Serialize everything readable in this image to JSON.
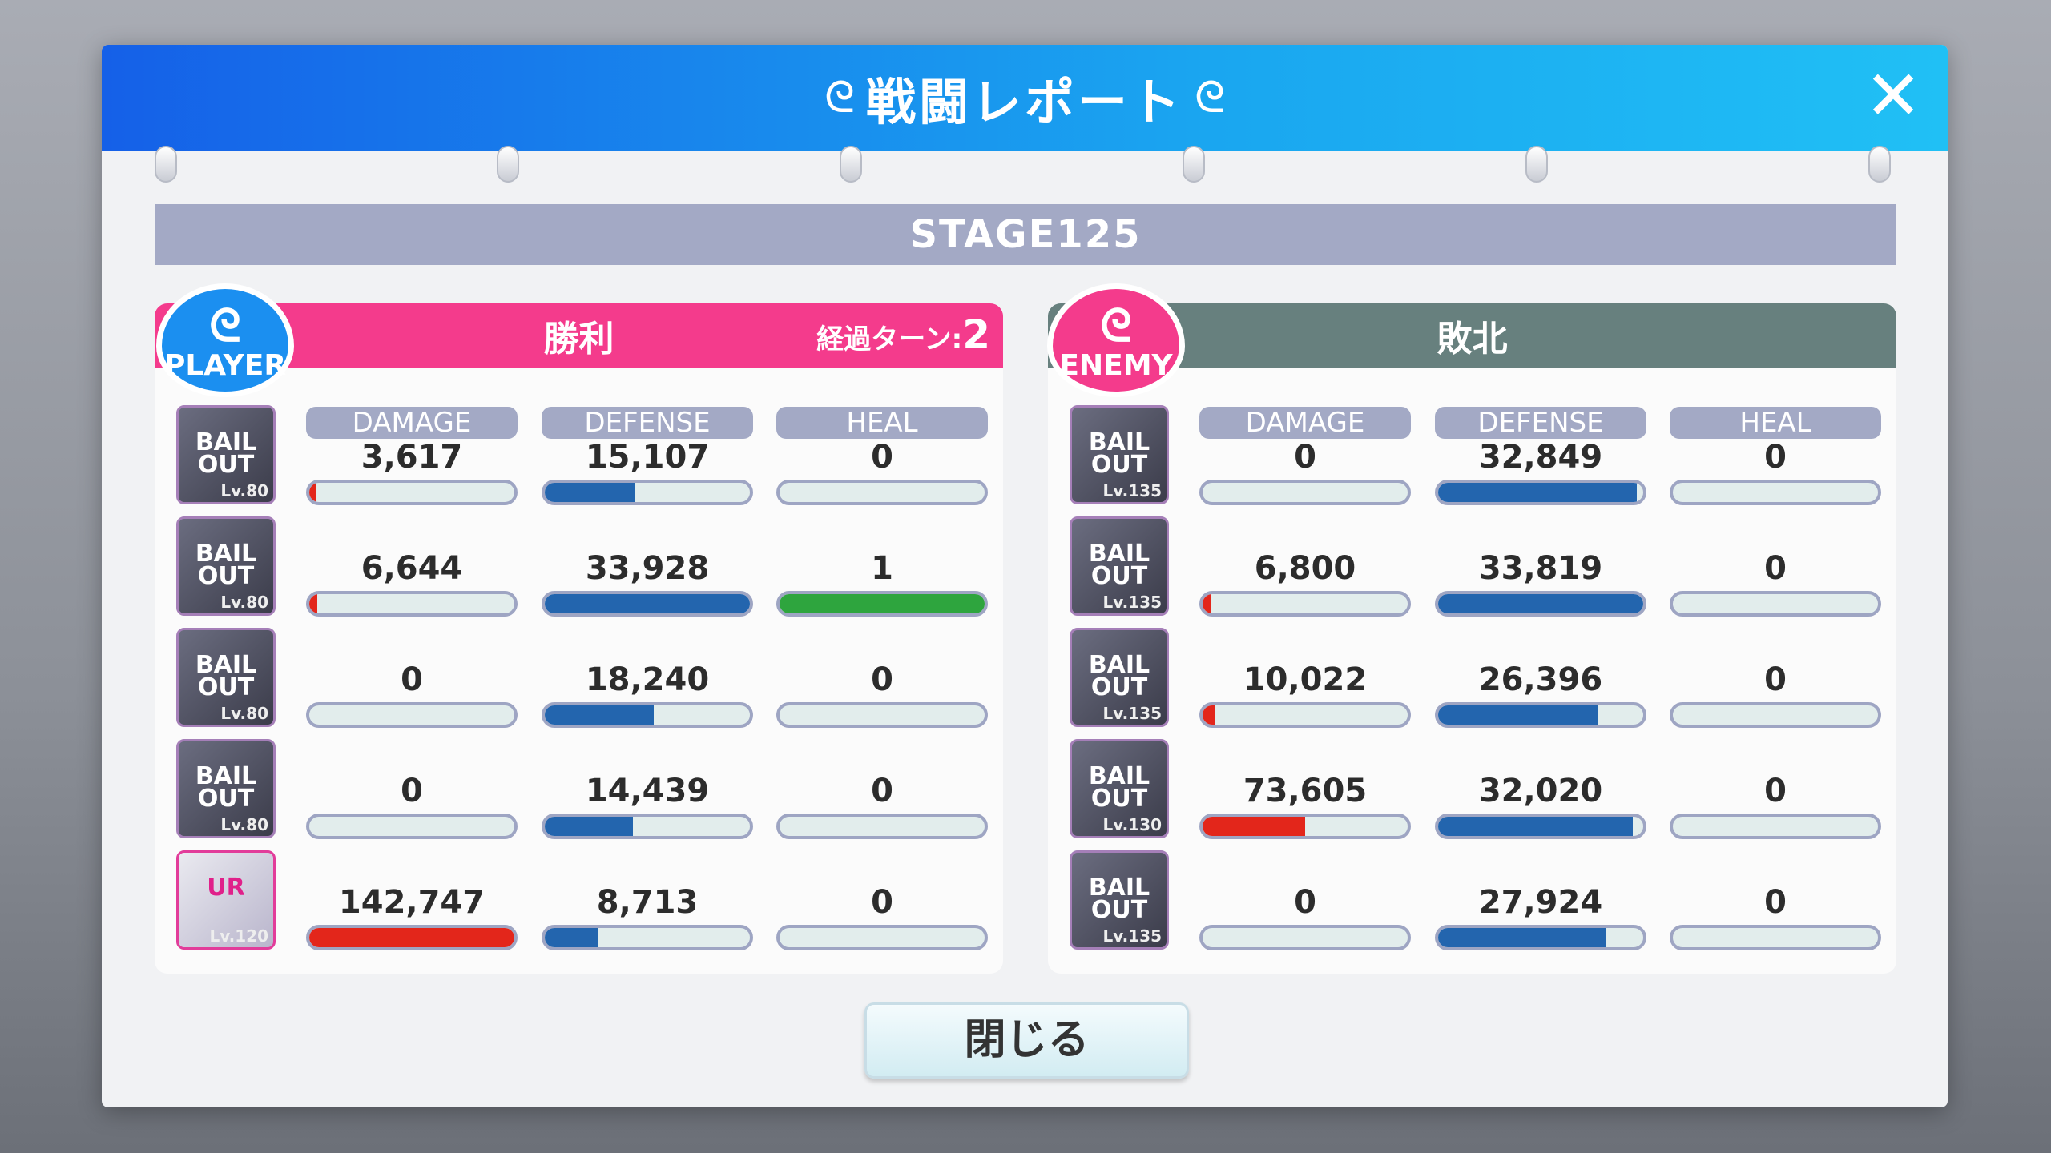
{
  "title": "戦闘レポート",
  "close_icon": "close-x-icon",
  "stage": "STAGE125",
  "close_button": "閉じる",
  "colors": {
    "header_blue": "#1a8cf0",
    "win": "#f43b8c",
    "lose": "#67807e",
    "damage": "#e3261b",
    "defense": "#2365ae",
    "heal": "#2ea53e"
  },
  "columns": [
    "DAMAGE",
    "DEFENSE",
    "HEAL"
  ],
  "player": {
    "badge": "PLAYER",
    "result": "勝利",
    "turns_label": "経過ターン:",
    "turns": "2",
    "rows": [
      {
        "portrait": "BAIL OUT",
        "level": "Lv.80",
        "damage": "3,617",
        "defense": "15,107",
        "heal": "0",
        "fill": [
          0.03,
          0.44,
          0
        ]
      },
      {
        "portrait": "BAIL OUT",
        "level": "Lv.80",
        "damage": "6,644",
        "defense": "33,928",
        "heal": "1",
        "fill": [
          0.04,
          1.0,
          1.0
        ]
      },
      {
        "portrait": "BAIL OUT",
        "level": "Lv.80",
        "damage": "0",
        "defense": "18,240",
        "heal": "0",
        "fill": [
          0,
          0.53,
          0
        ]
      },
      {
        "portrait": "BAIL OUT",
        "level": "Lv.80",
        "damage": "0",
        "defense": "14,439",
        "heal": "0",
        "fill": [
          0,
          0.43,
          0
        ]
      },
      {
        "portrait": "UR",
        "level": "Lv.120",
        "damage": "142,747",
        "defense": "8,713",
        "heal": "0",
        "fill": [
          1.0,
          0.26,
          0
        ]
      }
    ]
  },
  "enemy": {
    "badge": "ENEMY",
    "result": "敗北",
    "rows": [
      {
        "portrait": "BAIL OUT",
        "level": "Lv.135",
        "damage": "0",
        "defense": "32,849",
        "heal": "0",
        "fill": [
          0,
          0.97,
          0
        ]
      },
      {
        "portrait": "BAIL OUT",
        "level": "Lv.135",
        "damage": "6,800",
        "defense": "33,819",
        "heal": "0",
        "fill": [
          0.04,
          1.0,
          0
        ]
      },
      {
        "portrait": "BAIL OUT",
        "level": "Lv.135",
        "damage": "10,022",
        "defense": "26,396",
        "heal": "0",
        "fill": [
          0.06,
          0.78,
          0
        ]
      },
      {
        "portrait": "BAIL OUT",
        "level": "Lv.130",
        "damage": "73,605",
        "defense": "32,020",
        "heal": "0",
        "fill": [
          0.5,
          0.95,
          0
        ]
      },
      {
        "portrait": "BAIL OUT",
        "level": "Lv.135",
        "damage": "0",
        "defense": "27,924",
        "heal": "0",
        "fill": [
          0,
          0.82,
          0
        ]
      }
    ]
  }
}
